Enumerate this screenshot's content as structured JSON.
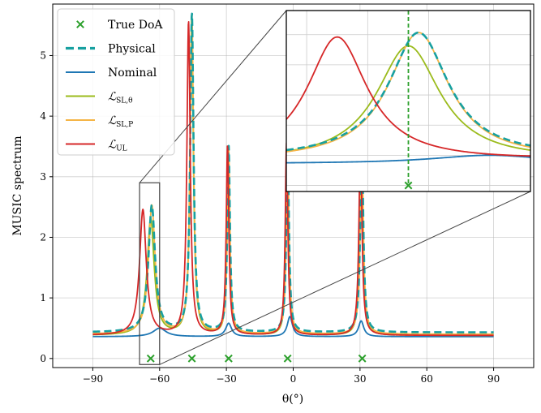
{
  "chart_data": {
    "type": "line",
    "xlabel": "θ(°)",
    "ylabel": "MUSIC spectrum",
    "xlim": [
      -108,
      108
    ],
    "ylim": [
      -0.15,
      5.85
    ],
    "xticks": [
      -90,
      -60,
      -30,
      0,
      30,
      60,
      90
    ],
    "xtick_labels": [
      "−90",
      "−60",
      "−30",
      "0",
      "30",
      "60",
      "90"
    ],
    "yticks": [
      0,
      1,
      2,
      3,
      4,
      5
    ],
    "ytick_labels": [
      "0",
      "1",
      "2",
      "3",
      "4",
      "5"
    ],
    "grid": true,
    "legend_position": "upper-left",
    "true_doa": {
      "name": "True DoA",
      "color": "#2ca02c",
      "x": [
        -64,
        -45.5,
        -29,
        -2.5,
        31
      ],
      "y": [
        0,
        0,
        0,
        0,
        0
      ]
    },
    "series": [
      {
        "name": "Physical",
        "color": "#17a0a0",
        "style": "dashed",
        "baseline": 0.43,
        "peaks": [
          {
            "x": -63.5,
            "height": 2.52,
            "width": 1.8
          },
          {
            "x": -45.5,
            "height": 5.68,
            "width": 0.9
          },
          {
            "x": -29.0,
            "height": 3.5,
            "width": 0.7
          },
          {
            "x": -2.5,
            "height": 3.55,
            "width": 0.7
          },
          {
            "x": 30.8,
            "height": 3.62,
            "width": 0.8
          }
        ]
      },
      {
        "name": "Nominal",
        "color": "#1f77b4",
        "style": "solid",
        "baseline": 0.36,
        "peaks": [
          {
            "x": -60,
            "height": 0.5,
            "width": 3.5
          },
          {
            "x": -29,
            "height": 0.58,
            "width": 1.6
          },
          {
            "x": -1.5,
            "height": 0.69,
            "width": 1.4
          },
          {
            "x": 30.5,
            "height": 0.62,
            "width": 1.4
          }
        ]
      },
      {
        "name": "ℒSL,θ",
        "color": "#9bbb1c",
        "style": "solid",
        "baseline": 0.38,
        "peaks": [
          {
            "x": -64.0,
            "height": 2.3,
            "width": 1.9
          },
          {
            "x": -45.6,
            "height": 5.6,
            "width": 0.9
          },
          {
            "x": -29.1,
            "height": 3.4,
            "width": 0.7
          },
          {
            "x": -2.6,
            "height": 3.4,
            "width": 0.7
          },
          {
            "x": 30.6,
            "height": 3.5,
            "width": 0.8
          }
        ]
      },
      {
        "name": "ℒSL,P",
        "color": "#f5b445",
        "style": "solid",
        "baseline": 0.4,
        "peaks": [
          {
            "x": -63.5,
            "height": 2.52,
            "width": 1.8
          },
          {
            "x": -45.5,
            "height": 5.65,
            "width": 0.9
          },
          {
            "x": -29.0,
            "height": 3.48,
            "width": 0.7
          },
          {
            "x": -2.5,
            "height": 3.55,
            "width": 0.7
          },
          {
            "x": 30.8,
            "height": 3.6,
            "width": 0.8
          }
        ]
      },
      {
        "name": "ℒUL",
        "color": "#d62728",
        "style": "solid",
        "baseline": 0.38,
        "peaks": [
          {
            "x": -67.5,
            "height": 2.45,
            "width": 1.8
          },
          {
            "x": -47.0,
            "height": 5.55,
            "width": 0.9
          },
          {
            "x": -29.5,
            "height": 3.5,
            "width": 0.7
          },
          {
            "x": -3.0,
            "height": 3.55,
            "width": 0.7
          },
          {
            "x": 30.2,
            "height": 3.65,
            "width": 0.8
          }
        ]
      }
    ],
    "legend": [
      {
        "label": "True DoA",
        "marker": "x",
        "color": "#2ca02c"
      },
      {
        "label": "Physical",
        "marker": "dashed",
        "color": "#17a0a0"
      },
      {
        "label": "Nominal",
        "marker": "line",
        "color": "#1f77b4"
      },
      {
        "label": "ℒ",
        "sub": "SL,θ",
        "marker": "line",
        "color": "#9bbb1c"
      },
      {
        "label": "ℒ",
        "sub": "SL,P",
        "marker": "line",
        "color": "#f5b445"
      },
      {
        "label": "ℒ",
        "sub": "UL",
        "marker": "line",
        "color": "#d62728"
      }
    ],
    "inset": {
      "xlim": [
        -70,
        -58
      ],
      "ylim": [
        -0.1,
        2.9
      ],
      "source_box_xlim": [
        -69,
        -60
      ],
      "source_box_ylim": [
        -0.1,
        2.9
      ]
    }
  }
}
